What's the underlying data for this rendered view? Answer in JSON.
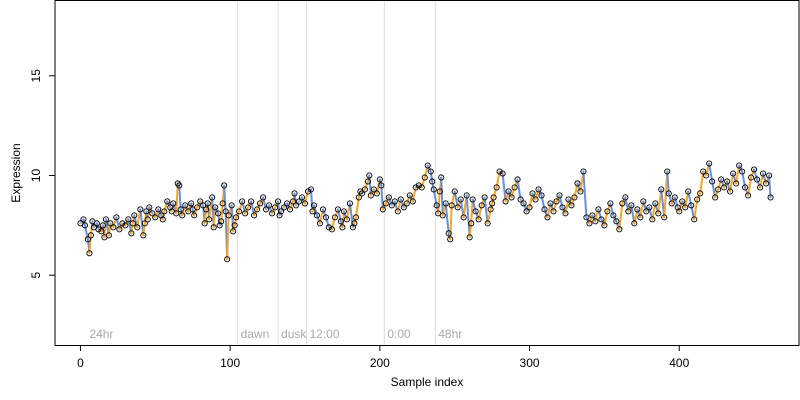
{
  "chart_data": {
    "type": "scatter",
    "title": "",
    "xlabel": "Sample index",
    "ylabel": "Expression",
    "xlim": [
      -17,
      480
    ],
    "ylim": [
      1.5,
      18.8
    ],
    "x_ticks": [
      0,
      100,
      200,
      300,
      400
    ],
    "y_ticks": [
      5,
      10,
      15
    ],
    "grid": false,
    "legend": "none",
    "colors": {
      "points_stroke": "#000000",
      "segment_above": "#f5a623",
      "segment_below": "#6a8fd8",
      "segment_neutral": "#a8a8a8",
      "marker_line": "#dddddd",
      "marker_text": "#a9a9a9"
    },
    "markers": [
      {
        "x": 4,
        "label": "24hr",
        "line": false
      },
      {
        "x": 105,
        "label": "dawn",
        "line": true
      },
      {
        "x": 132,
        "label": "dusk",
        "line": true
      },
      {
        "x": 151,
        "label": "12:00",
        "line": true
      },
      {
        "x": 203,
        "label": "0:00",
        "line": true
      },
      {
        "x": 237,
        "label": "48hr",
        "line": true
      }
    ],
    "series": [
      {
        "points": [
          [
            0,
            7.6
          ],
          [
            2,
            7.8
          ],
          [
            3,
            7.5
          ],
          [
            5,
            6.8
          ],
          [
            6,
            6.1
          ],
          [
            7,
            7.0
          ],
          [
            8,
            7.7
          ],
          [
            9,
            7.4
          ],
          [
            11,
            7.6
          ],
          [
            12,
            7.3
          ],
          [
            14,
            7.2
          ],
          [
            15,
            7.5
          ],
          [
            16,
            6.9
          ],
          [
            17,
            7.8
          ],
          [
            19,
            7.0
          ],
          [
            20,
            7.6
          ],
          [
            22,
            7.4
          ],
          [
            24,
            7.9
          ],
          [
            26,
            7.3
          ],
          [
            28,
            7.6
          ],
          [
            30,
            7.5
          ],
          [
            32,
            7.8
          ],
          [
            34,
            7.1
          ],
          [
            35,
            7.6
          ],
          [
            36,
            8.0
          ],
          [
            38,
            7.4
          ],
          [
            40,
            8.3
          ],
          [
            42,
            7.0
          ],
          [
            43,
            7.6
          ],
          [
            44,
            8.2
          ],
          [
            45,
            7.8
          ],
          [
            46,
            8.4
          ],
          [
            48,
            8.1
          ],
          [
            50,
            7.9
          ],
          [
            52,
            8.3
          ],
          [
            54,
            8.0
          ],
          [
            55,
            7.8
          ],
          [
            56,
            8.2
          ],
          [
            58,
            8.7
          ],
          [
            60,
            8.4
          ],
          [
            61,
            8.2
          ],
          [
            62,
            8.6
          ],
          [
            64,
            8.1
          ],
          [
            65,
            9.6
          ],
          [
            66,
            9.5
          ],
          [
            67,
            8.3
          ],
          [
            68,
            8.0
          ],
          [
            70,
            8.5
          ],
          [
            72,
            8.2
          ],
          [
            74,
            8.6
          ],
          [
            75,
            8.3
          ],
          [
            76,
            8.0
          ],
          [
            78,
            8.4
          ],
          [
            80,
            8.7
          ],
          [
            82,
            8.5
          ],
          [
            83,
            7.6
          ],
          [
            84,
            8.3
          ],
          [
            85,
            8.6
          ],
          [
            86,
            7.8
          ],
          [
            88,
            8.9
          ],
          [
            89,
            7.4
          ],
          [
            90,
            8.4
          ],
          [
            92,
            8.1
          ],
          [
            93,
            7.5
          ],
          [
            94,
            7.7
          ],
          [
            95,
            8.6
          ],
          [
            96,
            9.5
          ],
          [
            97,
            8.2
          ],
          [
            98,
            5.8
          ],
          [
            99,
            8.0
          ],
          [
            101,
            8.5
          ],
          [
            102,
            7.2
          ],
          [
            103,
            7.5
          ],
          [
            104,
            7.9
          ],
          [
            106,
            8.2
          ],
          [
            108,
            8.7
          ],
          [
            110,
            8.1
          ],
          [
            112,
            8.4
          ],
          [
            114,
            8.7
          ],
          [
            116,
            8.0
          ],
          [
            118,
            8.3
          ],
          [
            120,
            8.6
          ],
          [
            122,
            8.9
          ],
          [
            124,
            8.3
          ],
          [
            126,
            8.5
          ],
          [
            128,
            8.1
          ],
          [
            130,
            8.4
          ],
          [
            132,
            8.7
          ],
          [
            133,
            8.0
          ],
          [
            134,
            8.2
          ],
          [
            136,
            8.4
          ],
          [
            138,
            8.6
          ],
          [
            140,
            8.3
          ],
          [
            142,
            8.7
          ],
          [
            143,
            9.1
          ],
          [
            144,
            8.5
          ],
          [
            146,
            8.7
          ],
          [
            148,
            8.9
          ],
          [
            150,
            8.6
          ],
          [
            152,
            9.2
          ],
          [
            154,
            9.3
          ],
          [
            155,
            8.2
          ],
          [
            156,
            8.5
          ],
          [
            158,
            8.0
          ],
          [
            160,
            7.6
          ],
          [
            162,
            8.3
          ],
          [
            164,
            7.9
          ],
          [
            166,
            7.4
          ],
          [
            168,
            7.3
          ],
          [
            170,
            7.9
          ],
          [
            172,
            8.3
          ],
          [
            174,
            7.7
          ],
          [
            175,
            7.4
          ],
          [
            176,
            8.2
          ],
          [
            178,
            7.8
          ],
          [
            180,
            8.6
          ],
          [
            182,
            7.4
          ],
          [
            183,
            7.6
          ],
          [
            184,
            7.9
          ],
          [
            186,
            8.9
          ],
          [
            187,
            9.2
          ],
          [
            188,
            9.1
          ],
          [
            190,
            9.3
          ],
          [
            192,
            9.7
          ],
          [
            193,
            10.0
          ],
          [
            194,
            9.0
          ],
          [
            196,
            9.3
          ],
          [
            198,
            9.1
          ],
          [
            200,
            9.8
          ],
          [
            201,
            9.5
          ],
          [
            202,
            8.3
          ],
          [
            204,
            8.6
          ],
          [
            206,
            8.9
          ],
          [
            208,
            8.5
          ],
          [
            210,
            8.7
          ],
          [
            212,
            8.2
          ],
          [
            214,
            8.8
          ],
          [
            216,
            8.4
          ],
          [
            218,
            8.6
          ],
          [
            220,
            9.0
          ],
          [
            222,
            8.7
          ],
          [
            224,
            9.4
          ],
          [
            226,
            9.5
          ],
          [
            228,
            9.4
          ],
          [
            230,
            9.9
          ],
          [
            232,
            10.5
          ],
          [
            234,
            10.2
          ],
          [
            235,
            9.7
          ],
          [
            236,
            9.3
          ],
          [
            238,
            8.5
          ],
          [
            239,
            8.1
          ],
          [
            240,
            9.2
          ],
          [
            241,
            9.9
          ],
          [
            242,
            8.0
          ],
          [
            244,
            8.6
          ],
          [
            246,
            7.1
          ],
          [
            247,
            6.8
          ],
          [
            248,
            8.5
          ],
          [
            250,
            9.2
          ],
          [
            252,
            8.4
          ],
          [
            254,
            8.8
          ],
          [
            256,
            7.9
          ],
          [
            258,
            9.0
          ],
          [
            260,
            6.9
          ],
          [
            261,
            7.6
          ],
          [
            262,
            8.8
          ],
          [
            264,
            8.2
          ],
          [
            266,
            7.8
          ],
          [
            268,
            8.5
          ],
          [
            270,
            8.9
          ],
          [
            272,
            7.6
          ],
          [
            274,
            8.3
          ],
          [
            275,
            8.6
          ],
          [
            276,
            8.9
          ],
          [
            278,
            9.4
          ],
          [
            280,
            10.2
          ],
          [
            282,
            10.1
          ],
          [
            284,
            8.7
          ],
          [
            286,
            9.2
          ],
          [
            288,
            8.9
          ],
          [
            290,
            9.4
          ],
          [
            292,
            9.8
          ],
          [
            294,
            8.8
          ],
          [
            296,
            8.6
          ],
          [
            298,
            8.2
          ],
          [
            300,
            8.4
          ],
          [
            302,
            9.1
          ],
          [
            304,
            8.8
          ],
          [
            306,
            9.3
          ],
          [
            308,
            9.0
          ],
          [
            310,
            8.3
          ],
          [
            312,
            7.9
          ],
          [
            314,
            8.6
          ],
          [
            316,
            8.2
          ],
          [
            318,
            8.7
          ],
          [
            320,
            9.0
          ],
          [
            322,
            8.4
          ],
          [
            324,
            8.1
          ],
          [
            326,
            8.8
          ],
          [
            328,
            8.5
          ],
          [
            330,
            8.9
          ],
          [
            332,
            9.6
          ],
          [
            334,
            9.2
          ],
          [
            336,
            10.2
          ],
          [
            338,
            7.9
          ],
          [
            340,
            7.6
          ],
          [
            342,
            8.0
          ],
          [
            344,
            7.7
          ],
          [
            346,
            8.3
          ],
          [
            348,
            7.8
          ],
          [
            350,
            7.5
          ],
          [
            352,
            8.2
          ],
          [
            354,
            8.6
          ],
          [
            356,
            8.0
          ],
          [
            358,
            7.7
          ],
          [
            360,
            7.3
          ],
          [
            362,
            8.6
          ],
          [
            364,
            8.9
          ],
          [
            366,
            8.2
          ],
          [
            368,
            8.5
          ],
          [
            370,
            7.6
          ],
          [
            372,
            8.3
          ],
          [
            374,
            7.9
          ],
          [
            376,
            8.7
          ],
          [
            378,
            8.2
          ],
          [
            380,
            8.4
          ],
          [
            382,
            7.8
          ],
          [
            384,
            8.6
          ],
          [
            386,
            8.1
          ],
          [
            388,
            9.3
          ],
          [
            390,
            7.9
          ],
          [
            392,
            10.2
          ],
          [
            393,
            9.1
          ],
          [
            395,
            8.6
          ],
          [
            397,
            8.9
          ],
          [
            399,
            8.4
          ],
          [
            400,
            8.2
          ],
          [
            402,
            8.7
          ],
          [
            404,
            8.4
          ],
          [
            406,
            9.2
          ],
          [
            408,
            8.5
          ],
          [
            410,
            7.8
          ],
          [
            412,
            8.8
          ],
          [
            414,
            9.1
          ],
          [
            416,
            10.2
          ],
          [
            418,
            10.0
          ],
          [
            420,
            10.6
          ],
          [
            422,
            9.7
          ],
          [
            424,
            8.9
          ],
          [
            426,
            9.3
          ],
          [
            428,
            9.8
          ],
          [
            430,
            9.4
          ],
          [
            432,
            9.7
          ],
          [
            434,
            9.2
          ],
          [
            436,
            10.1
          ],
          [
            438,
            9.6
          ],
          [
            440,
            10.5
          ],
          [
            442,
            10.2
          ],
          [
            444,
            9.4
          ],
          [
            446,
            9.0
          ],
          [
            448,
            9.9
          ],
          [
            450,
            10.3
          ],
          [
            452,
            9.8
          ],
          [
            454,
            9.4
          ],
          [
            456,
            10.1
          ],
          [
            458,
            9.6
          ],
          [
            460,
            10.0
          ],
          [
            461,
            8.9
          ]
        ]
      }
    ]
  }
}
